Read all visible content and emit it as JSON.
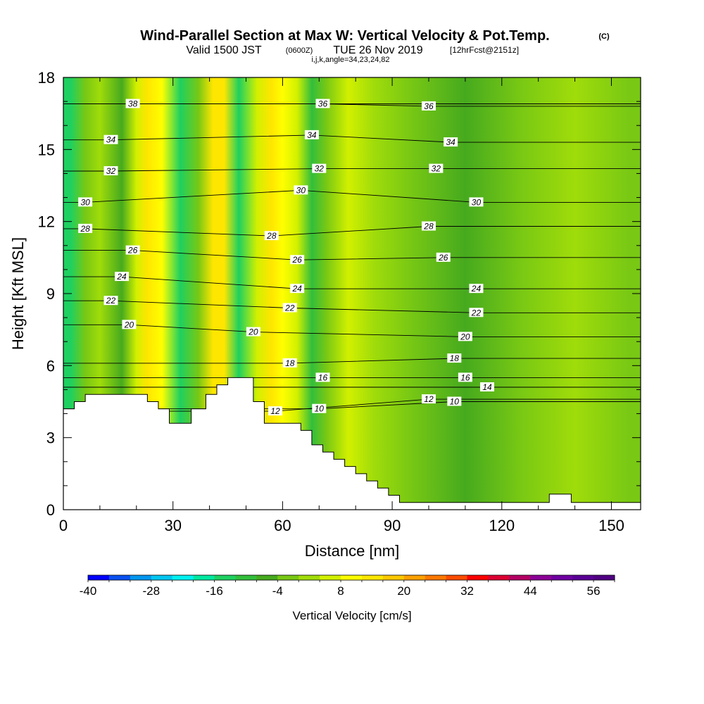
{
  "chart_data": {
    "type": "heatmap",
    "title": "Wind-Parallel Section at Max W: Vertical Velocity & Pot.Temp.",
    "title_note": "(C)",
    "subtitle_parts": [
      "Valid 1500 JST",
      "(0600Z)",
      "TUE 26 Nov 2019",
      "[12hrFcst@2151z]"
    ],
    "params_line": "i,j,k,angle=34,23,24,82",
    "xlabel": "Distance [nm]",
    "ylabel": "Height [Kft MSL]",
    "xlim": [
      0,
      158
    ],
    "ylim": [
      0,
      18
    ],
    "x_ticks": [
      0,
      30,
      60,
      90,
      120,
      150
    ],
    "y_ticks": [
      0,
      3,
      6,
      9,
      12,
      15,
      18
    ],
    "x_tick_labels": [
      "0",
      "30",
      "60",
      "90",
      "120",
      "150"
    ],
    "y_tick_labels": [
      "0",
      "3",
      "6",
      "9",
      "12",
      "15",
      "18"
    ],
    "colorbar": {
      "title": "Vertical Velocity [cm/s]",
      "min": -40,
      "max": 60,
      "step": 4,
      "tick_labels": [
        "-40",
        "-28",
        "-16",
        "-4",
        "8",
        "20",
        "32",
        "44",
        "56"
      ],
      "tick_values": [
        -40,
        -28,
        -16,
        -4,
        8,
        20,
        32,
        44,
        56
      ],
      "colors": [
        "#0000ff",
        "#0a50f0",
        "#0096ee",
        "#00c6f0",
        "#00f0f0",
        "#00e8a0",
        "#1ed060",
        "#32be3c",
        "#46aa1e",
        "#78c814",
        "#a0dc0a",
        "#d2f000",
        "#ffff00",
        "#ffe600",
        "#ffc800",
        "#ffa000",
        "#ff7800",
        "#ff4b00",
        "#ff0000",
        "#dc0032",
        "#b40064",
        "#8c0096",
        "#6e00a0",
        "#5a0096",
        "#500082"
      ]
    },
    "vertical_velocity_bands": [
      {
        "x": 2,
        "w": -16
      },
      {
        "x": 6,
        "w": -4
      },
      {
        "x": 10,
        "w": 0
      },
      {
        "x": 16,
        "w": -8
      },
      {
        "x": 20,
        "w": 4
      },
      {
        "x": 23,
        "w": 12
      },
      {
        "x": 27,
        "w": 8
      },
      {
        "x": 32,
        "w": -16
      },
      {
        "x": 37,
        "w": -4
      },
      {
        "x": 41,
        "w": 12
      },
      {
        "x": 44,
        "w": 12
      },
      {
        "x": 48,
        "w": -16
      },
      {
        "x": 53,
        "w": 4
      },
      {
        "x": 57,
        "w": 12
      },
      {
        "x": 60,
        "w": 8
      },
      {
        "x": 64,
        "w": 4
      },
      {
        "x": 68,
        "w": -12
      },
      {
        "x": 72,
        "w": -4
      },
      {
        "x": 78,
        "w": 4
      },
      {
        "x": 85,
        "w": 0
      },
      {
        "x": 95,
        "w": -4
      },
      {
        "x": 110,
        "w": -8
      },
      {
        "x": 125,
        "w": -4
      },
      {
        "x": 140,
        "w": 0
      },
      {
        "x": 155,
        "w": -4
      }
    ],
    "potential_temperature_labels": [
      {
        "x": 19,
        "y": 16.9,
        "text": "38"
      },
      {
        "x": 71,
        "y": 16.9,
        "text": "36"
      },
      {
        "x": 100,
        "y": 16.8,
        "text": "36"
      },
      {
        "x": 13,
        "y": 15.4,
        "text": "34"
      },
      {
        "x": 68,
        "y": 15.6,
        "text": "34"
      },
      {
        "x": 106,
        "y": 15.3,
        "text": "34"
      },
      {
        "x": 13,
        "y": 14.1,
        "text": "32"
      },
      {
        "x": 70,
        "y": 14.2,
        "text": "32"
      },
      {
        "x": 102,
        "y": 14.2,
        "text": "32"
      },
      {
        "x": 6,
        "y": 12.8,
        "text": "30"
      },
      {
        "x": 65,
        "y": 13.3,
        "text": "30"
      },
      {
        "x": 113,
        "y": 12.8,
        "text": "30"
      },
      {
        "x": 6,
        "y": 11.7,
        "text": "28"
      },
      {
        "x": 57,
        "y": 11.4,
        "text": "28"
      },
      {
        "x": 100,
        "y": 11.8,
        "text": "28"
      },
      {
        "x": 19,
        "y": 10.8,
        "text": "26"
      },
      {
        "x": 64,
        "y": 10.4,
        "text": "26"
      },
      {
        "x": 104,
        "y": 10.5,
        "text": "26"
      },
      {
        "x": 16,
        "y": 9.7,
        "text": "24"
      },
      {
        "x": 64,
        "y": 9.2,
        "text": "24"
      },
      {
        "x": 113,
        "y": 9.2,
        "text": "24"
      },
      {
        "x": 13,
        "y": 8.7,
        "text": "22"
      },
      {
        "x": 62,
        "y": 8.4,
        "text": "22"
      },
      {
        "x": 113,
        "y": 8.2,
        "text": "22"
      },
      {
        "x": 18,
        "y": 7.7,
        "text": "20"
      },
      {
        "x": 52,
        "y": 7.4,
        "text": "20"
      },
      {
        "x": 110,
        "y": 7.2,
        "text": "20"
      },
      {
        "x": 62,
        "y": 6.1,
        "text": "18"
      },
      {
        "x": 107,
        "y": 6.3,
        "text": "18"
      },
      {
        "x": 71,
        "y": 5.5,
        "text": "16"
      },
      {
        "x": 110,
        "y": 5.5,
        "text": "16"
      },
      {
        "x": 116,
        "y": 5.1,
        "text": "14"
      },
      {
        "x": 58,
        "y": 4.1,
        "text": "12"
      },
      {
        "x": 100,
        "y": 4.6,
        "text": "12"
      },
      {
        "x": 70,
        "y": 4.2,
        "text": "10"
      },
      {
        "x": 107,
        "y": 4.5,
        "text": "10"
      }
    ],
    "terrain_profile": [
      [
        0,
        4.2
      ],
      [
        3,
        4.2
      ],
      [
        3,
        4.5
      ],
      [
        6,
        4.5
      ],
      [
        6,
        4.8
      ],
      [
        23,
        4.8
      ],
      [
        23,
        4.5
      ],
      [
        26,
        4.5
      ],
      [
        26,
        4.2
      ],
      [
        29,
        4.2
      ],
      [
        29,
        3.6
      ],
      [
        35,
        3.6
      ],
      [
        35,
        4.2
      ],
      [
        39,
        4.2
      ],
      [
        39,
        4.8
      ],
      [
        42,
        4.8
      ],
      [
        42,
        5.2
      ],
      [
        45,
        5.2
      ],
      [
        45,
        5.5
      ],
      [
        52,
        5.5
      ],
      [
        52,
        4.5
      ],
      [
        55,
        4.5
      ],
      [
        55,
        3.6
      ],
      [
        65,
        3.6
      ],
      [
        65,
        3.3
      ],
      [
        68,
        3.3
      ],
      [
        68,
        2.7
      ],
      [
        71,
        2.7
      ],
      [
        71,
        2.4
      ],
      [
        74,
        2.4
      ],
      [
        74,
        2.1
      ],
      [
        77,
        2.1
      ],
      [
        77,
        1.8
      ],
      [
        80,
        1.8
      ],
      [
        80,
        1.5
      ],
      [
        83,
        1.5
      ],
      [
        83,
        1.2
      ],
      [
        86,
        1.2
      ],
      [
        86,
        0.9
      ],
      [
        89,
        0.9
      ],
      [
        89,
        0.6
      ],
      [
        92,
        0.6
      ],
      [
        92,
        0.3
      ],
      [
        133,
        0.3
      ],
      [
        133,
        0.65
      ],
      [
        139,
        0.65
      ],
      [
        139,
        0.3
      ],
      [
        158,
        0.3
      ]
    ]
  }
}
